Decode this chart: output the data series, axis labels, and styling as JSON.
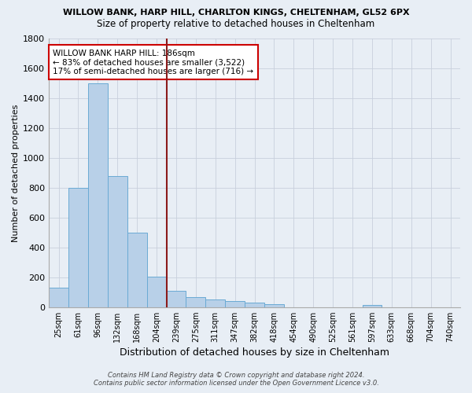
{
  "title_line1": "WILLOW BANK, HARP HILL, CHARLTON KINGS, CHELTENHAM, GL52 6PX",
  "title_line2": "Size of property relative to detached houses in Cheltenham",
  "xlabel": "Distribution of detached houses by size in Cheltenham",
  "ylabel": "Number of detached properties",
  "footer_line1": "Contains HM Land Registry data © Crown copyright and database right 2024.",
  "footer_line2": "Contains public sector information licensed under the Open Government Licence v3.0.",
  "categories": [
    "25sqm",
    "61sqm",
    "96sqm",
    "132sqm",
    "168sqm",
    "204sqm",
    "239sqm",
    "275sqm",
    "311sqm",
    "347sqm",
    "382sqm",
    "418sqm",
    "454sqm",
    "490sqm",
    "525sqm",
    "561sqm",
    "597sqm",
    "633sqm",
    "668sqm",
    "704sqm",
    "740sqm"
  ],
  "values": [
    130,
    800,
    1500,
    880,
    500,
    205,
    110,
    65,
    50,
    38,
    30,
    22,
    0,
    0,
    0,
    0,
    13,
    0,
    0,
    0,
    0
  ],
  "bar_color": "#b8d0e8",
  "bar_edge_color": "#6aaad4",
  "background_color": "#e8eef5",
  "grid_color": "#c8d0dc",
  "vline_x": 5.5,
  "vline_color": "#8b1a1a",
  "annotation_text": "WILLOW BANK HARP HILL: 186sqm\n← 83% of detached houses are smaller (3,522)\n17% of semi-detached houses are larger (716) →",
  "annotation_box_color": "white",
  "annotation_box_edge": "#cc0000",
  "ylim": [
    0,
    1800
  ],
  "yticks": [
    0,
    200,
    400,
    600,
    800,
    1000,
    1200,
    1400,
    1600,
    1800
  ]
}
